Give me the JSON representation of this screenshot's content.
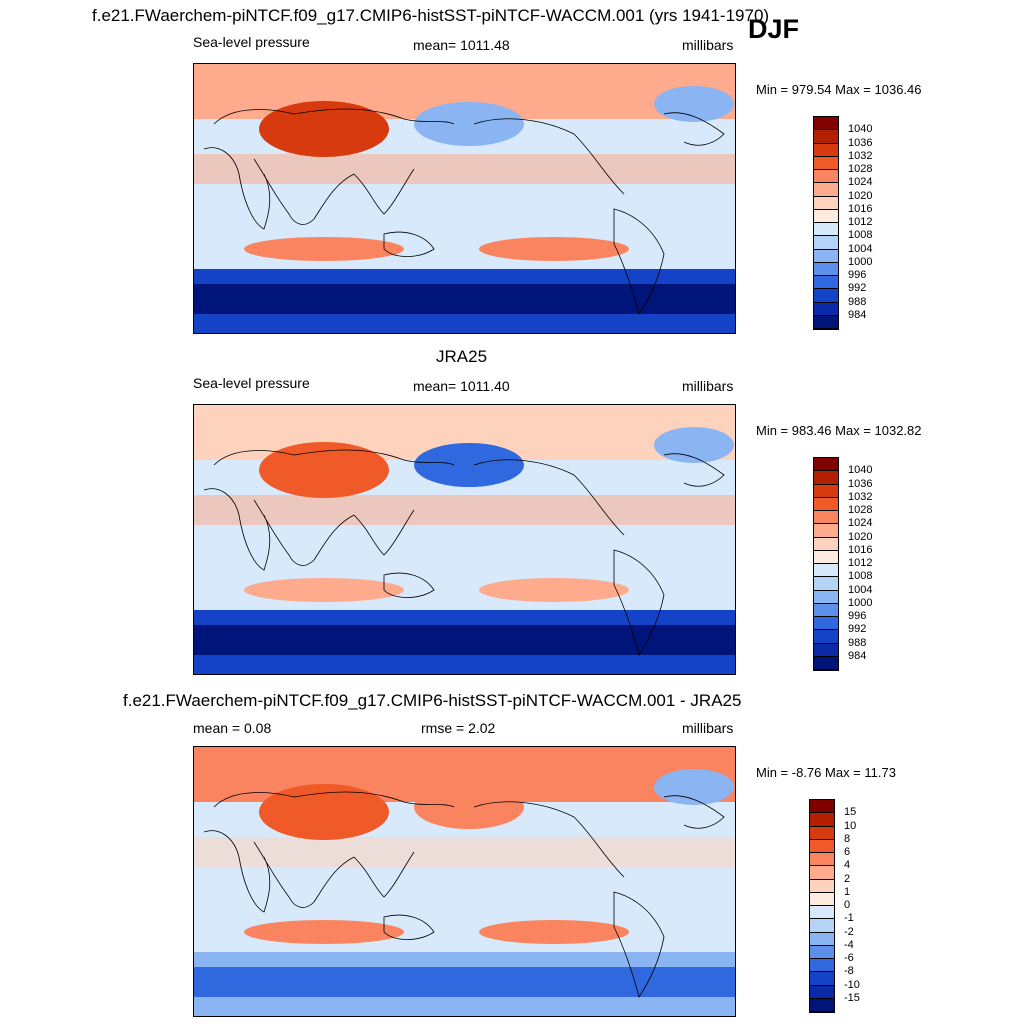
{
  "season": "DJF",
  "panels": [
    {
      "title": "f.e21.FWaerchem-piNTCF.f09_g17.CMIP6-histSST-piNTCF-WACCM.001 (yrs 1941-1970)",
      "left": "Sea-level pressure",
      "center": "mean= 1011.48",
      "right": "millibars",
      "minmax": "Min = 979.54 Max = 1036.46",
      "colorbar": {
        "labels": [
          "1040",
          "1036",
          "1032",
          "1028",
          "1024",
          "1020",
          "1016",
          "1012",
          "1008",
          "1004",
          "1000",
          "996",
          "992",
          "988",
          "984"
        ],
        "colors": [
          "#800000",
          "#b22000",
          "#d83a10",
          "#f05a28",
          "#fa8460",
          "#fdab8c",
          "#fed3bd",
          "#fdebe0",
          "#d7e9fb",
          "#b5d2f7",
          "#8ab4f2",
          "#5c90ea",
          "#3068e0",
          "#1443c8",
          "#0a2aa8",
          "#00157a"
        ]
      },
      "regions": {
        "arctic": "#fdab8c",
        "sib": "#d83a10",
        "aleut": "#8ab4f2",
        "icel": "#8ab4f2",
        "subtrop": "#fdab8c",
        "trop": "#d7e9fb",
        "sh_high": "#fa8460",
        "southern": "#1443c8",
        "deep": "#00157a"
      }
    },
    {
      "title": "JRA25",
      "left": "Sea-level pressure",
      "center": "mean= 1011.40",
      "right": "millibars",
      "minmax": "Min = 983.46 Max = 1032.82",
      "colorbar": {
        "labels": [
          "1040",
          "1036",
          "1032",
          "1028",
          "1024",
          "1020",
          "1016",
          "1012",
          "1008",
          "1004",
          "1000",
          "996",
          "992",
          "988",
          "984"
        ],
        "colors": [
          "#800000",
          "#b22000",
          "#d83a10",
          "#f05a28",
          "#fa8460",
          "#fdab8c",
          "#fed3bd",
          "#fdebe0",
          "#d7e9fb",
          "#b5d2f7",
          "#8ab4f2",
          "#5c90ea",
          "#3068e0",
          "#1443c8",
          "#0a2aa8",
          "#00157a"
        ]
      },
      "regions": {
        "arctic": "#fed3bd",
        "sib": "#f05a28",
        "aleut": "#3068e0",
        "icel": "#8ab4f2",
        "subtrop": "#fdab8c",
        "trop": "#d7e9fb",
        "sh_high": "#fdab8c",
        "southern": "#1443c8",
        "deep": "#00157a"
      }
    },
    {
      "title": "f.e21.FWaerchem-piNTCF.f09_g17.CMIP6-histSST-piNTCF-WACCM.001 - JRA25",
      "left": "mean =   0.08",
      "center": "rmse =   2.02",
      "right": "millibars",
      "minmax": "Min =  -8.76 Max =  11.73",
      "colorbar": {
        "labels": [
          "15",
          "10",
          "8",
          "6",
          "4",
          "2",
          "1",
          "0",
          "-1",
          "-2",
          "-4",
          "-6",
          "-8",
          "-10",
          "-15"
        ],
        "colors": [
          "#800000",
          "#b22000",
          "#d83a10",
          "#f05a28",
          "#fa8460",
          "#fdab8c",
          "#fed3bd",
          "#fdebe0",
          "#d7e9fb",
          "#b5d2f7",
          "#8ab4f2",
          "#5c90ea",
          "#3068e0",
          "#1443c8",
          "#0a2aa8",
          "#00157a"
        ]
      },
      "regions": {
        "arctic": "#fa8460",
        "sib": "#f05a28",
        "aleut": "#fa8460",
        "icel": "#8ab4f2",
        "subtrop": "#fed3bd",
        "trop": "#d7e9fb",
        "sh_high": "#fa8460",
        "southern": "#8ab4f2",
        "deep": "#3068e0"
      }
    }
  ]
}
